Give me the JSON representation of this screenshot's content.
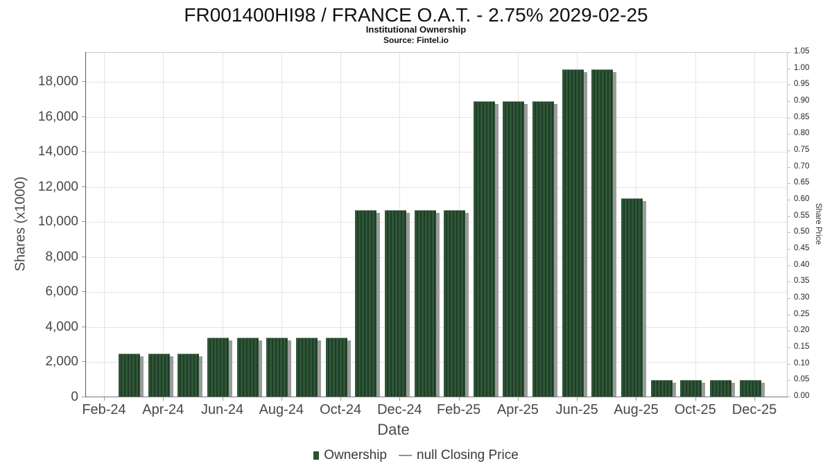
{
  "header": {
    "title": "FR001400HI98 / FRANCE O.A.T. - 2.75% 2029-02-25",
    "subtitle": "Institutional Ownership",
    "source": "Source: Fintel.io"
  },
  "chart_data": {
    "type": "bar",
    "title": "FR001400HI98 / FRANCE O.A.T. - 2.75% 2029-02-25",
    "subtitle": "Institutional Ownership",
    "source": "Source: Fintel.io",
    "xlabel": "Date",
    "ylabel": "Shares (x1000)",
    "ylabel_right": "Share Price",
    "grid": true,
    "legend_position": "bottom",
    "categories": [
      "Mar-24",
      "Apr-24",
      "May-24",
      "Jun-24",
      "Jul-24",
      "Aug-24",
      "Sep-24",
      "Oct-24",
      "Nov-24",
      "Dec-24",
      "Jan-25",
      "Feb-25",
      "Mar-25",
      "Apr-25",
      "May-25",
      "Jun-25",
      "Jul-25",
      "Aug-25",
      "Sep-25",
      "Oct-25",
      "Nov-25",
      "Dec-25"
    ],
    "series": [
      {
        "name": "Ownership",
        "type": "bar",
        "color": "#2b5134",
        "values": [
          2500,
          2500,
          2500,
          3400,
          3400,
          3400,
          3400,
          3400,
          10700,
          10700,
          10700,
          10700,
          16900,
          16900,
          16900,
          18700,
          18700,
          11350,
          1000,
          1000,
          1000,
          1000
        ]
      },
      {
        "name": "null Closing Price",
        "type": "line",
        "color": "#555555",
        "values": []
      }
    ],
    "x_axis": {
      "months": [
        "Feb-24",
        "Mar-24",
        "Apr-24",
        "May-24",
        "Jun-24",
        "Jul-24",
        "Aug-24",
        "Sep-24",
        "Oct-24",
        "Nov-24",
        "Dec-24",
        "Jan-25",
        "Feb-25",
        "Mar-25",
        "Apr-25",
        "May-25",
        "Jun-25",
        "Jul-25",
        "Aug-25",
        "Sep-25",
        "Oct-25",
        "Nov-25",
        "Dec-25"
      ],
      "tick_labels": [
        "Feb-24",
        "Apr-24",
        "Jun-24",
        "Aug-24",
        "Oct-24",
        "Dec-24",
        "Feb-25",
        "Apr-25",
        "Jun-25",
        "Aug-25",
        "Oct-25",
        "Dec-25"
      ]
    },
    "y_axis_left": {
      "tick_labels": [
        "0",
        "2,000",
        "4,000",
        "6,000",
        "8,000",
        "10,000",
        "12,000",
        "14,000",
        "16,000",
        "18,000"
      ],
      "tick_values": [
        0,
        2000,
        4000,
        6000,
        8000,
        10000,
        12000,
        14000,
        16000,
        18000
      ],
      "range": [
        0,
        19660
      ]
    },
    "y_axis_right": {
      "tick_labels": [
        "0.00",
        "0.05",
        "0.10",
        "0.15",
        "0.20",
        "0.25",
        "0.30",
        "0.35",
        "0.40",
        "0.45",
        "0.50",
        "0.55",
        "0.60",
        "0.65",
        "0.70",
        "0.75",
        "0.80",
        "0.85",
        "0.90",
        "0.95",
        "1.00",
        "1.05"
      ],
      "range": [
        0,
        1.05
      ]
    }
  },
  "legend": {
    "ownership_label": "Ownership",
    "dash_glyph": "—",
    "price_label": "null Closing Price"
  }
}
